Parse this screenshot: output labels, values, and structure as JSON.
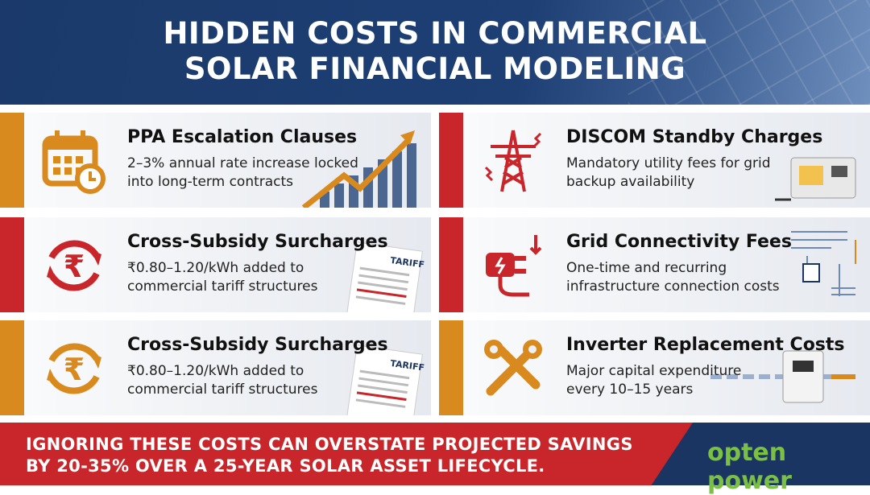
{
  "header": {
    "title_line1": "HIDDEN COSTS IN COMMERCIAL",
    "title_line2": "SOLAR FINANCIAL MODELING"
  },
  "colors": {
    "orange": "#d98a1e",
    "red": "#c8262a",
    "navy": "#1b3563",
    "green": "#7ac143"
  },
  "cards": [
    {
      "title": "PPA Escalation Clauses",
      "desc1": "2–3% annual rate increase locked",
      "desc2": "into long-term contracts",
      "icon": "calendar-clock-icon",
      "accent": "#d98a1e"
    },
    {
      "title": "DISCOM Standby Charges",
      "desc1": "Mandatory utility fees for grid",
      "desc2": "backup availability",
      "icon": "transmission-tower-icon",
      "accent": "#c8262a"
    },
    {
      "title": "Cross-Subsidy Surcharges",
      "desc1": "₹0.80–1.20/kWh added to",
      "desc2": "commercial tariff structures",
      "icon": "rupee-cycle-icon",
      "accent": "#c8262a",
      "doc": "TARIFF"
    },
    {
      "title": "Grid Connectivity Fees",
      "desc1": "One-time and recurring",
      "desc2": "infrastructure connection costs",
      "icon": "plug-icon",
      "accent": "#c8262a"
    },
    {
      "title": "Cross-Subsidy Surcharges",
      "desc1": "₹0.80–1.20/kWh added to",
      "desc2": "commercial tariff structures",
      "icon": "rupee-cycle-icon",
      "accent": "#d98a1e",
      "doc": "TARIFF"
    },
    {
      "title": "Inverter Replacement Costs",
      "desc1": "Major capital expenditure",
      "desc2": "every 10–15 years",
      "icon": "tools-icon",
      "accent": "#d98a1e"
    }
  ],
  "footer": {
    "line1": "IGNORING THESE COSTS CAN OVERSTATE PROJECTED SAVINGS",
    "line2": "BY 20-35% OVER A 25-YEAR SOLAR ASSET LIFECYCLE.",
    "logo": "opten power"
  }
}
